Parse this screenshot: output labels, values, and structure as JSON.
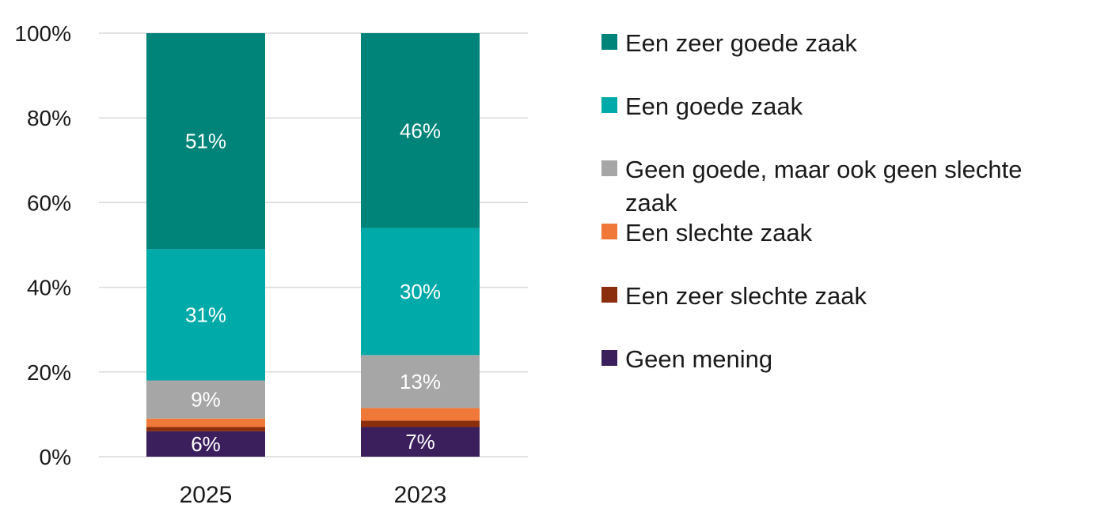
{
  "chart_data": {
    "type": "bar",
    "stacked": true,
    "categories": [
      "2025",
      "2023"
    ],
    "y_ticks": [
      "0%",
      "20%",
      "40%",
      "60%",
      "80%",
      "100%"
    ],
    "ylim": [
      0,
      100
    ],
    "grid": true,
    "legend_position": "right",
    "series": [
      {
        "name": "Geen mening",
        "color": "#3b1f5c",
        "values": [
          6,
          7
        ],
        "labels": [
          "6%",
          "7%"
        ]
      },
      {
        "name": "Een zeer slechte zaak",
        "color": "#8b2e0e",
        "values": [
          1,
          1.5
        ],
        "labels": [
          "",
          ""
        ]
      },
      {
        "name": "Een slechte zaak",
        "color": "#f07838",
        "values": [
          2,
          3
        ],
        "labels": [
          "",
          ""
        ]
      },
      {
        "name": "Geen goede, maar ook geen slechte zaak",
        "color": "#a6a6a6",
        "values": [
          9,
          12.5
        ],
        "labels": [
          "9%",
          "13%"
        ]
      },
      {
        "name": "Een goede zaak",
        "color": "#00aaa8",
        "values": [
          31,
          30
        ],
        "labels": [
          "31%",
          "30%"
        ]
      },
      {
        "name": "Een zeer goede zaak",
        "color": "#00847a",
        "values": [
          51,
          46
        ],
        "labels": [
          "51%",
          "46%"
        ]
      }
    ]
  },
  "legend": {
    "items": [
      {
        "label": "Een zeer goede zaak",
        "color": "#00847a"
      },
      {
        "label": "Een goede zaak",
        "color": "#00aaa8"
      },
      {
        "label": "Geen goede, maar ook geen slechte zaak",
        "color": "#a6a6a6"
      },
      {
        "label": "Een slechte zaak",
        "color": "#f07838"
      },
      {
        "label": "Een zeer slechte zaak",
        "color": "#8b2e0e"
      },
      {
        "label": "Geen mening",
        "color": "#3b1f5c"
      }
    ]
  }
}
